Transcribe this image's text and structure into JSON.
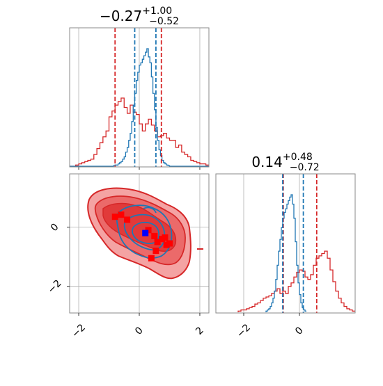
{
  "chart_data": {
    "type": "corner",
    "colors": {
      "red": "#d62728",
      "blue": "#1f77b4",
      "grid": "#b0b0b0",
      "frame": "#888888",
      "fill_light": "#f4a3a3",
      "fill_dark": "#e13a3a"
    },
    "grid": true,
    "panels": {
      "x_hist": {
        "title": {
          "main": "−0.27",
          "sup": "+1.00",
          "sub": "−0.52"
        },
        "xlim": [
          -2.3,
          2.3
        ],
        "ticks": [
          -2,
          0,
          2
        ],
        "quantiles_red": [
          -0.8,
          0.73
        ],
        "quantiles_blue": [
          -0.15,
          0.55
        ],
        "red_hist": {
          "x0": -2.3,
          "step": 0.1,
          "values": [
            0,
            0,
            0.01,
            0.02,
            0.03,
            0.04,
            0.05,
            0.06,
            0.1,
            0.15,
            0.2,
            0.25,
            0.3,
            0.42,
            0.47,
            0.52,
            0.55,
            0.58,
            0.5,
            0.45,
            0.52,
            0.46,
            0.44,
            0.36,
            0.3,
            0.36,
            0.4,
            0.35,
            0.3,
            0.25,
            0.26,
            0.28,
            0.24,
            0.22,
            0.22,
            0.16,
            0.18,
            0.12,
            0.1,
            0.08,
            0.05,
            0.04,
            0.03,
            0.02,
            0.02,
            0.01
          ]
        },
        "blue_hist": {
          "x0": -2.3,
          "step": 0.05,
          "values": [
            0,
            0,
            0,
            0,
            0,
            0,
            0,
            0,
            0,
            0,
            0,
            0,
            0,
            0,
            0,
            0,
            0,
            0,
            0,
            0,
            0,
            0,
            0,
            0,
            0,
            0,
            0,
            0,
            0,
            0.005,
            0.01,
            0.01,
            0.02,
            0.03,
            0.04,
            0.06,
            0.08,
            0.12,
            0.16,
            0.22,
            0.28,
            0.38,
            0.52,
            0.62,
            0.73,
            0.8,
            0.86,
            0.88,
            0.91,
            0.94,
            0.97,
            1.0,
            0.93,
            0.88,
            0.76,
            0.62,
            0.48,
            0.33,
            0.22,
            0.14,
            0.09,
            0.05,
            0.03,
            0.02,
            0.01,
            0.005,
            0,
            0,
            0,
            0,
            0,
            0,
            0,
            0,
            0,
            0,
            0,
            0,
            0,
            0,
            0,
            0,
            0,
            0,
            0,
            0,
            0,
            0,
            0,
            0,
            0,
            0
          ]
        }
      },
      "y_hist": {
        "title": {
          "main": "0.14",
          "sup": "+0.48",
          "sub": "−0.72"
        },
        "xlim": [
          -3,
          2
        ],
        "ticks": [
          -2,
          0
        ],
        "quantiles_red": [
          -0.58,
          0.62
        ],
        "quantiles_blue": [
          -0.6,
          0.14
        ],
        "red_hist": {
          "x0": -2.2,
          "step": 0.1,
          "values": [
            0.01,
            0.02,
            0.02,
            0.03,
            0.04,
            0.05,
            0.07,
            0.08,
            0.1,
            0.12,
            0.13,
            0.14,
            0.16,
            0.18,
            0.2,
            0.16,
            0.18,
            0.16,
            0.22,
            0.25,
            0.3,
            0.34,
            0.36,
            0.35,
            0.3,
            0.28,
            0.32,
            0.4,
            0.46,
            0.48,
            0.5,
            0.52,
            0.46,
            0.36,
            0.26,
            0.18,
            0.12,
            0.08,
            0.05,
            0.03,
            0.02,
            0.01
          ]
        },
        "blue_hist": {
          "x0": -1.2,
          "step": 0.05,
          "values": [
            0.01,
            0.02,
            0.03,
            0.05,
            0.08,
            0.12,
            0.18,
            0.28,
            0.4,
            0.52,
            0.62,
            0.72,
            0.8,
            0.85,
            0.88,
            0.92,
            0.95,
            0.98,
            1.0,
            0.92,
            0.8,
            0.6,
            0.4,
            0.25,
            0.15,
            0.08,
            0.04,
            0.02,
            0.01
          ]
        }
      },
      "scatter_2d": {
        "xlim": [
          -2.3,
          2.3
        ],
        "ylim": [
          -2.9,
          1.8
        ],
        "xticks": [
          -2,
          0,
          2
        ],
        "yticks": [
          -2,
          0
        ],
        "red_points": [
          [
            -0.8,
            0.35
          ],
          [
            -0.6,
            0.42
          ],
          [
            -0.4,
            0.25
          ],
          [
            0.3,
            -0.1
          ],
          [
            0.5,
            -0.3
          ],
          [
            0.6,
            -0.5
          ],
          [
            0.75,
            -0.4
          ],
          [
            0.85,
            -0.35
          ],
          [
            0.9,
            -0.6
          ],
          [
            1.0,
            -0.55
          ],
          [
            0.4,
            -1.05
          ],
          [
            0.55,
            -0.8
          ]
        ],
        "blue_points": [
          [
            0.2,
            -0.2
          ]
        ]
      },
      "tick_labels": {
        "neg2": "−2",
        "zero": "0",
        "pos2": "2"
      }
    }
  }
}
